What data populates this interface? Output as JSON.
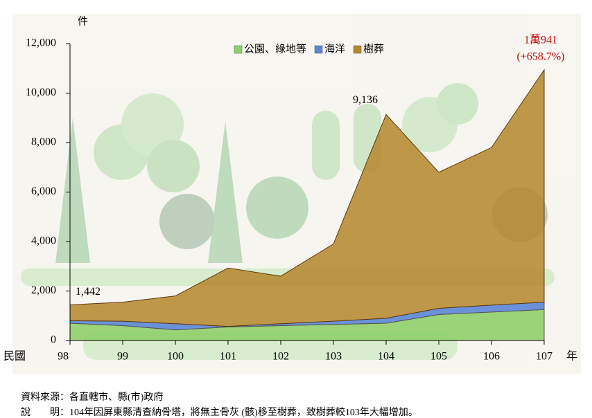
{
  "chart_data": {
    "type": "stacked-area",
    "y_label": "件",
    "x_prefix": "民國",
    "x_suffix": "年",
    "categories": [
      "98",
      "99",
      "100",
      "101",
      "102",
      "103",
      "104",
      "105",
      "106",
      "107"
    ],
    "series": [
      {
        "name": "公園、綠地等",
        "color": "#8fcf6a",
        "values": [
          700,
          600,
          430,
          550,
          600,
          650,
          700,
          1050,
          1150,
          1250
        ]
      },
      {
        "name": "海洋",
        "color": "#5b86d6",
        "values": [
          100,
          180,
          250,
          20,
          80,
          130,
          200,
          250,
          280,
          300
        ]
      },
      {
        "name": "樹葬",
        "color": "#b5862c",
        "values": [
          642,
          770,
          1120,
          2360,
          1920,
          3120,
          8236,
          5500,
          6370,
          9391
        ]
      }
    ],
    "annotations": [
      "1,442",
      "9,136",
      "1萬941",
      "(+658.7%)"
    ],
    "ylim": [
      0,
      12000
    ],
    "yticks": [
      0,
      {
        "value": 2000,
        "label": "2,000"
      },
      {
        "value": 4000,
        "label": "4,000"
      },
      {
        "value": 6000,
        "label": "6,000"
      },
      {
        "value": 8000,
        "label": "8,000"
      },
      {
        "value": 10000,
        "label": "10,000"
      },
      {
        "value": 12000,
        "label": "12,000"
      }
    ],
    "source": "資料來源：各直轄市、縣(市)政府",
    "note": "說　　明：104年因屏東縣清查納骨塔，將無主骨灰 (骸)移至樹葬，致樹葬較103年大幅增加。"
  }
}
